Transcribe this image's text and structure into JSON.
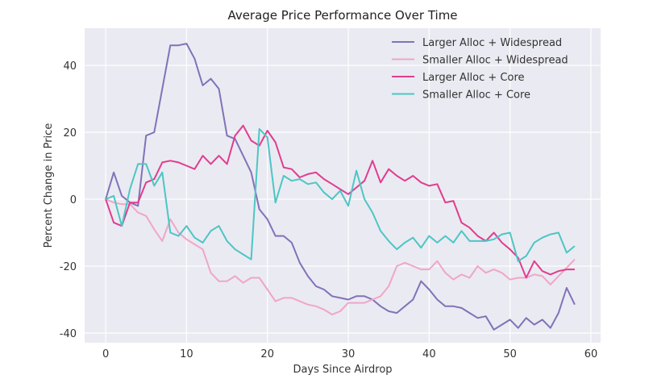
{
  "chart_data": {
    "type": "line",
    "title": "Average Price Performance Over Time",
    "xlabel": "Days Since Airdrop",
    "ylabel": "Percent Change in Price",
    "xlim": [
      -2.6,
      61.2
    ],
    "ylim": [
      -42.9,
      51.1
    ],
    "xticks": [
      0,
      10,
      20,
      30,
      40,
      50,
      60
    ],
    "yticks": [
      -40,
      -20,
      0,
      20,
      40
    ],
    "grid": true,
    "legend_position": "top-right",
    "x": [
      0,
      1,
      2,
      3,
      4,
      5,
      6,
      7,
      8,
      9,
      10,
      11,
      12,
      13,
      14,
      15,
      16,
      17,
      18,
      19,
      20,
      21,
      22,
      23,
      24,
      25,
      26,
      27,
      28,
      29,
      30,
      31,
      32,
      33,
      34,
      35,
      36,
      37,
      38,
      39,
      40,
      41,
      42,
      43,
      44,
      45,
      46,
      47,
      48,
      49,
      50,
      51,
      52,
      53,
      54,
      55,
      56,
      57,
      58
    ],
    "series": [
      {
        "name": "Larger Alloc + Widespread",
        "color": "#8172b8",
        "values": [
          0,
          8,
          1,
          -1,
          -2,
          19,
          20,
          33,
          46,
          46,
          46.5,
          42,
          34,
          36,
          33,
          19,
          18,
          13,
          8,
          -3,
          -6,
          -11,
          -11,
          -13,
          -19,
          -23,
          -26,
          -27,
          -29,
          -29.5,
          -30,
          -29,
          -29,
          -30,
          -32,
          -33.5,
          -34,
          -32,
          -30,
          -24.5,
          -27,
          -30,
          -32,
          -32,
          -32.5,
          -34,
          -35.5,
          -35,
          -39,
          -37.5,
          -36,
          -38.5,
          -35.5,
          -37.5,
          -36,
          -38.5,
          -34,
          -26.5,
          -31.5
        ]
      },
      {
        "name": "Smaller Alloc + Widespread",
        "color": "#f0a6c6",
        "values": [
          0,
          -1,
          -1.5,
          -1.5,
          -4,
          -5,
          -9,
          -12.5,
          -6,
          -10,
          -12,
          -13.5,
          -15,
          -22,
          -24.5,
          -24.5,
          -23,
          -25,
          -23.5,
          -23.5,
          -27,
          -30.5,
          -29.5,
          -29.5,
          -30.5,
          -31.5,
          -32,
          -33,
          -34.5,
          -33.5,
          -31,
          -31,
          -31,
          -30,
          -29,
          -26,
          -20,
          -19,
          -20,
          -21,
          -21,
          -18.5,
          -22,
          -24,
          -22.5,
          -23.5,
          -20,
          -22,
          -21,
          -22,
          -24,
          -23.5,
          -23.5,
          -22.5,
          -23,
          -25.5,
          -23,
          -20.5,
          -18
        ]
      },
      {
        "name": "Larger Alloc + Core",
        "color": "#e03d8e",
        "values": [
          0,
          -7,
          -8,
          -1,
          -1,
          5,
          6,
          11,
          11.5,
          11,
          10,
          9,
          13,
          10.5,
          13,
          10.5,
          19,
          22,
          17.5,
          16,
          20.5,
          17,
          9.5,
          9,
          6.5,
          7.5,
          8,
          6,
          4.5,
          3,
          1.5,
          3.5,
          5.5,
          11.5,
          5,
          9,
          7,
          5.5,
          7,
          5,
          4,
          4.5,
          -1,
          -0.5,
          -7,
          -8.5,
          -11,
          -12.5,
          -10,
          -13,
          -15,
          -17.5,
          -23.5,
          -18.5,
          -21.5,
          -22.5,
          -21.5,
          -21,
          -21
        ]
      },
      {
        "name": "Smaller Alloc + Core",
        "color": "#4cc6c4",
        "values": [
          0,
          1,
          -8,
          3,
          10.5,
          10.5,
          4,
          8,
          -10,
          -11,
          -8,
          -11.5,
          -13,
          -9.5,
          -8,
          -12.5,
          -15,
          -16.5,
          -18,
          21,
          18.5,
          -1,
          7,
          5.5,
          6,
          4.5,
          5,
          2,
          0,
          2.5,
          -2,
          8.5,
          0,
          -4,
          -9.5,
          -12.5,
          -15,
          -13,
          -11.5,
          -14.5,
          -11,
          -13,
          -11,
          -13,
          -9.5,
          -12.5,
          -12.5,
          -12.5,
          -12,
          -10.5,
          -10,
          -18.5,
          -17,
          -13,
          -11.5,
          -10.5,
          -10,
          -16,
          -14
        ]
      }
    ],
    "plot_background": "#eaeaf2",
    "grid_color": "#ffffff"
  }
}
